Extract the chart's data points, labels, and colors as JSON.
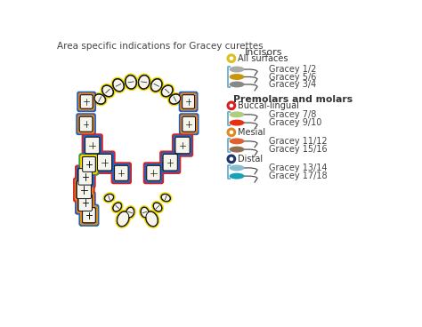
{
  "title": "Area specific indications for Gracey curettes",
  "title_fontsize": 7.5,
  "bg": "#ffffff",
  "yellow": "#f0d800",
  "red": "#e02020",
  "blue": "#2060c0",
  "orange": "#e08020",
  "lblue": "#60a8d0",
  "green": "#40a020",
  "black": "#111111",
  "tooth_fill": "#f5f5ee",
  "incisors_title": "Incisors",
  "incisors_circle_color": "#ddc020",
  "incisors_circle_label": "All surfaces",
  "incisor_items": [
    {
      "label": "Gracey 1/2",
      "hc": "#aaaaaa"
    },
    {
      "label": "Gracey 5/6",
      "hc": "#c8960a"
    },
    {
      "label": "Gracey 3/4",
      "hc": "#888888"
    }
  ],
  "premolars_title": "Premolars and molars",
  "buccal_circle_color": "#d82020",
  "buccal_label": "Buccal-lingual",
  "buccal_items": [
    {
      "label": "Gracey 7/8",
      "hc": "#b0cc80"
    },
    {
      "label": "Gracey 9/10",
      "hc": "#e83010"
    }
  ],
  "mesial_circle_color": "#e08820",
  "mesial_label": "Mesial",
  "mesial_items": [
    {
      "label": "Gracey 11/12",
      "hc": "#e06030"
    },
    {
      "label": "Gracey 15/16",
      "hc": "#907050"
    }
  ],
  "distal_circle_color": "#1a3570",
  "distal_label": "Distal",
  "distal_items": [
    {
      "label": "Gracey 13/14",
      "hc": "#88bece"
    },
    {
      "label": "Gracey 17/18",
      "hc": "#18a0b8"
    }
  ]
}
